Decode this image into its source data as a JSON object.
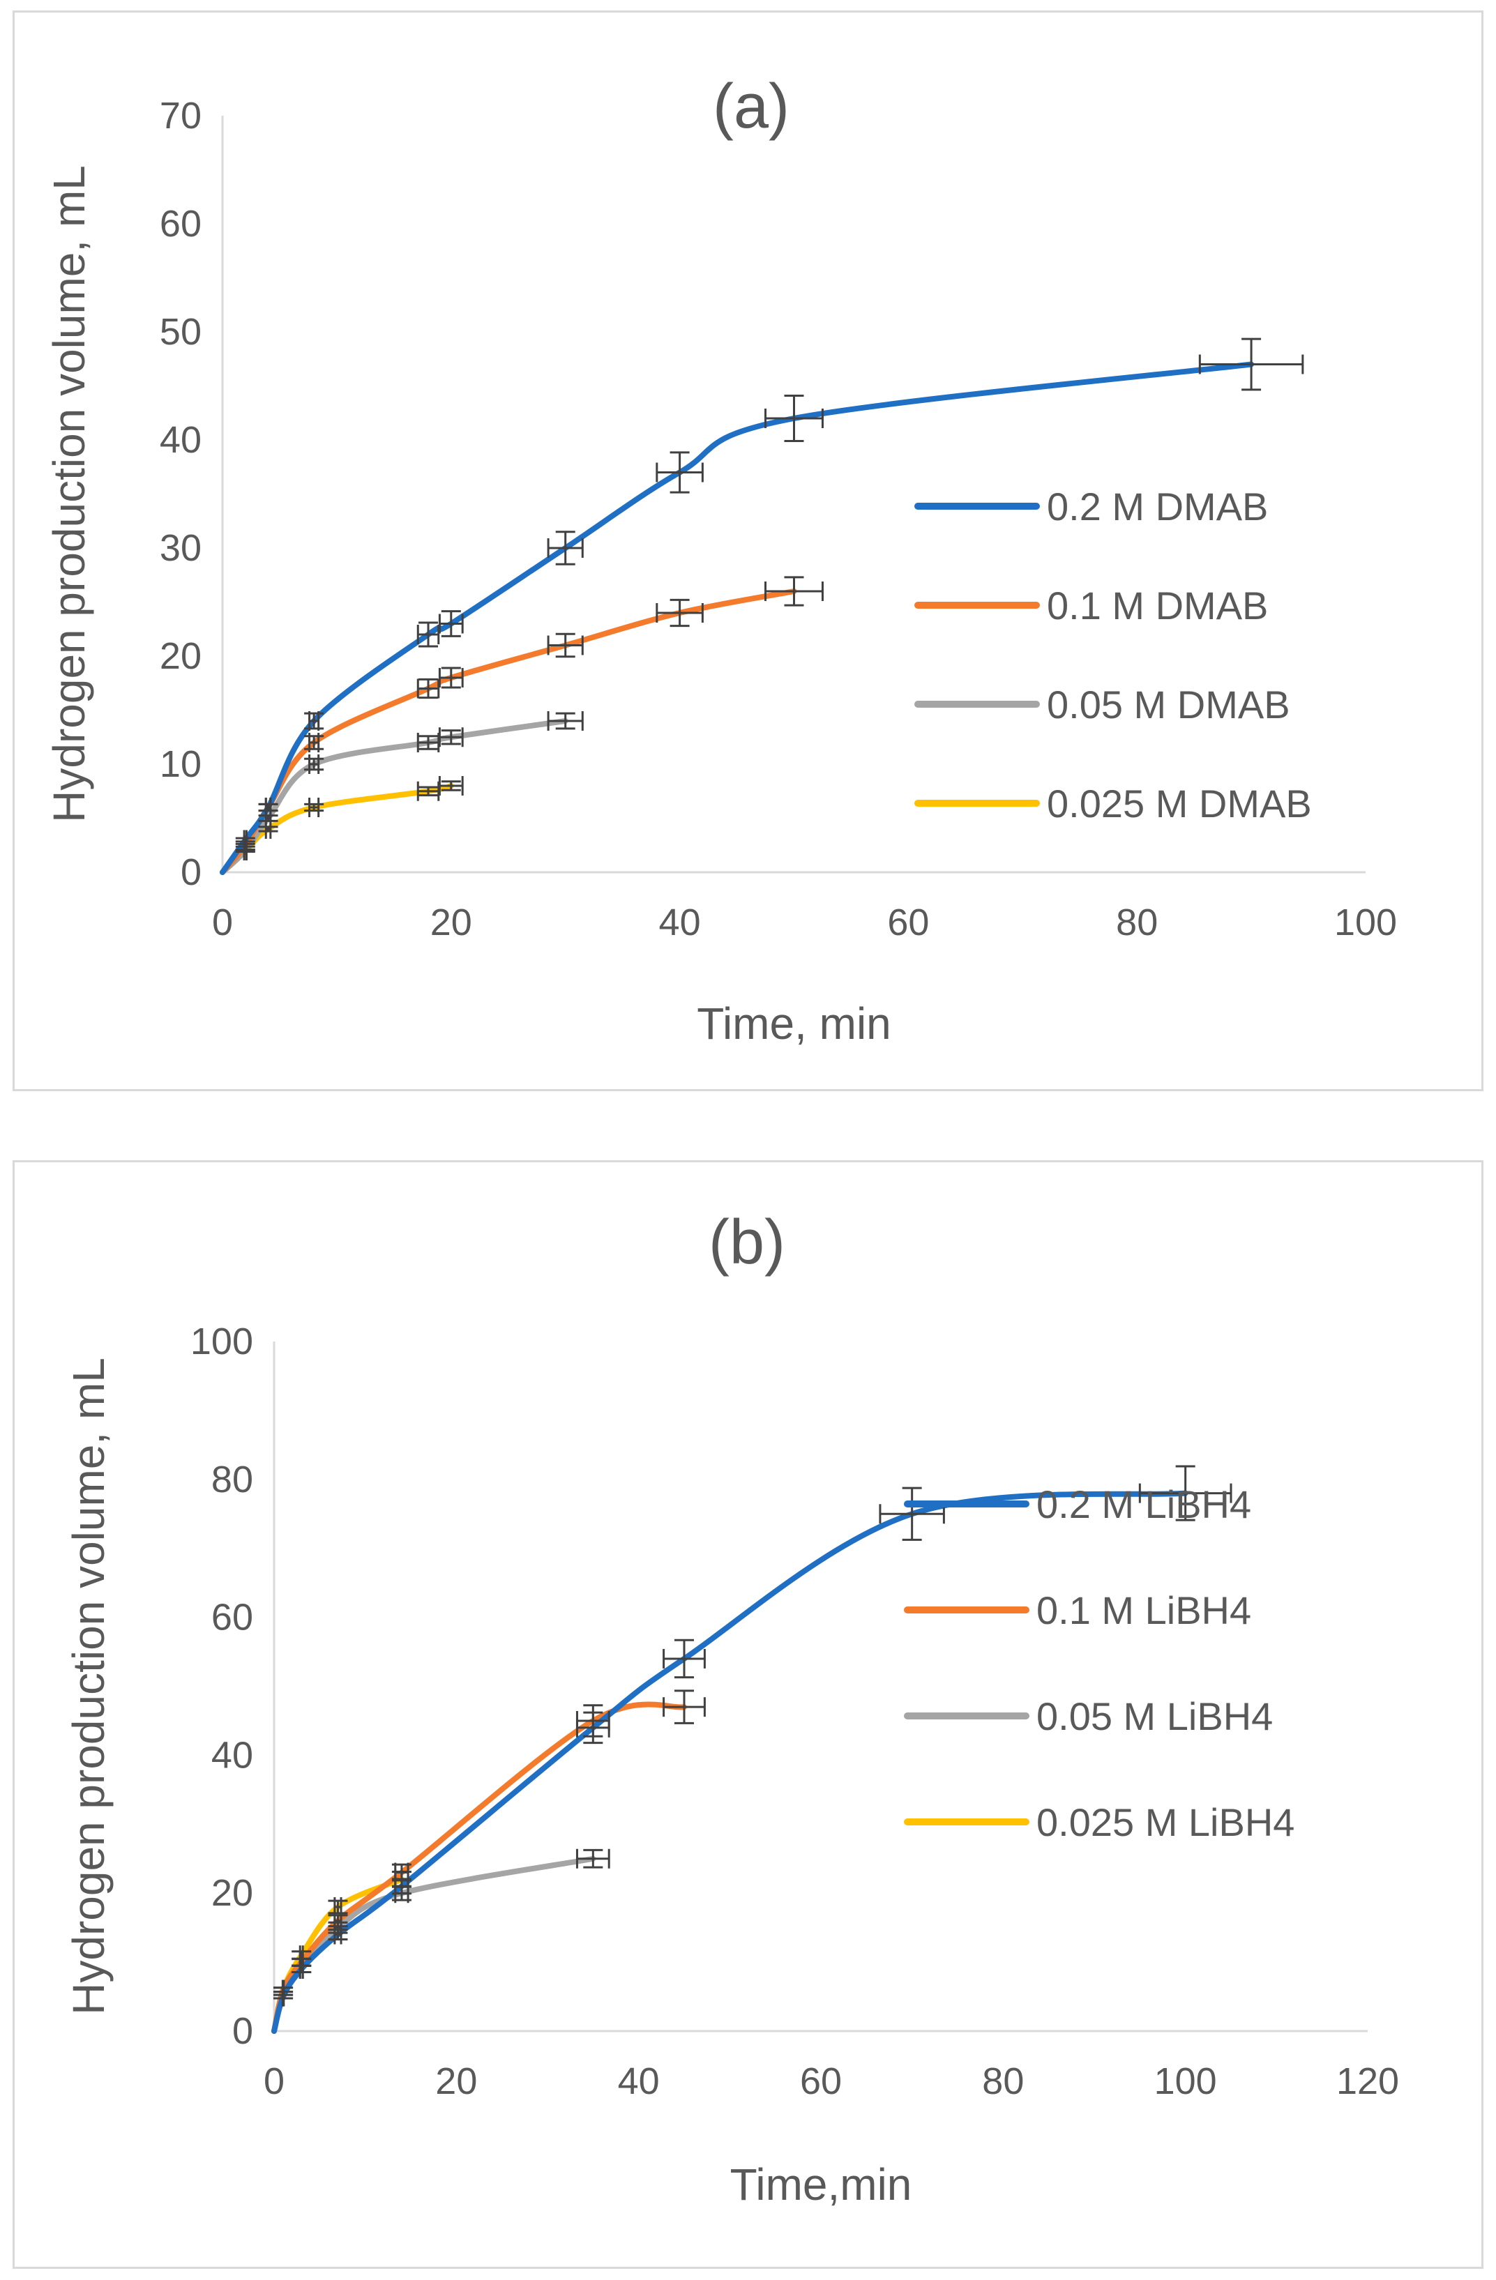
{
  "chart_data": [
    {
      "type": "line",
      "title": "(a)",
      "xlabel": "Time, min",
      "ylabel": "Hydrogen production volume, mL",
      "xlim": [
        0,
        100
      ],
      "ylim": [
        0,
        70
      ],
      "xticks": [
        0,
        20,
        40,
        60,
        80,
        100
      ],
      "yticks": [
        0,
        10,
        20,
        30,
        40,
        50,
        60,
        70
      ],
      "xtick_labels": [
        "0",
        "20",
        "40",
        "60",
        "80",
        "100"
      ],
      "ytick_labels": [
        "0",
        "10",
        "20",
        "30",
        "40",
        "50",
        "60",
        "70"
      ],
      "legend_position": "right",
      "series": [
        {
          "name": "0.2 M DMAB",
          "color": "#1f6fc4",
          "x": [
            0,
            2,
            4,
            8,
            18,
            20,
            30,
            40,
            50,
            90
          ],
          "y": [
            0,
            3,
            6,
            14,
            22,
            23,
            30,
            37,
            42,
            47
          ]
        },
        {
          "name": "0.1 M DMAB",
          "color": "#f47a2c",
          "x": [
            0,
            2,
            4,
            8,
            18,
            20,
            30,
            40,
            50
          ],
          "y": [
            0,
            2.5,
            6,
            12,
            17,
            18,
            21,
            24,
            26
          ]
        },
        {
          "name": "0.05 M DMAB",
          "color": "#a5a5a5",
          "x": [
            0,
            2,
            4,
            8,
            18,
            20,
            30
          ],
          "y": [
            0,
            2,
            5,
            10,
            12,
            12.5,
            14
          ]
        },
        {
          "name": "0.025 M DMAB",
          "color": "#ffc000",
          "x": [
            0,
            2,
            4,
            8,
            18,
            20
          ],
          "y": [
            0,
            2,
            4,
            6,
            7.5,
            8
          ]
        }
      ]
    },
    {
      "type": "line",
      "title": "(b)",
      "xlabel": "Time,min",
      "ylabel": "Hydrogen production volume, mL",
      "xlim": [
        0,
        120
      ],
      "ylim": [
        0,
        100
      ],
      "xticks": [
        0,
        20,
        40,
        60,
        80,
        100,
        120
      ],
      "yticks": [
        0,
        20,
        40,
        60,
        80,
        100
      ],
      "xtick_labels": [
        "0",
        "20",
        "40",
        "60",
        "80",
        "100",
        "120"
      ],
      "ytick_labels": [
        "0",
        "20",
        "40",
        "60",
        "80",
        "100"
      ],
      "legend_position": "right",
      "series": [
        {
          "name": "0.2 M LiBH4",
          "color": "#1f6fc4",
          "x": [
            0,
            1,
            3,
            7,
            14,
            35,
            45,
            70,
            100
          ],
          "y": [
            0,
            5,
            9,
            14,
            21,
            44,
            54,
            75,
            78
          ]
        },
        {
          "name": "0.1 M LiBH4",
          "color": "#f47a2c",
          "x": [
            0,
            1,
            3,
            7,
            14,
            35,
            45
          ],
          "y": [
            0,
            6,
            10,
            16,
            23,
            45,
            47
          ]
        },
        {
          "name": "0.05 M LiBH4",
          "color": "#a5a5a5",
          "x": [
            0,
            1,
            3,
            7,
            14,
            35
          ],
          "y": [
            0,
            5,
            9,
            15,
            20,
            25
          ]
        },
        {
          "name": "0.025 M LiBH4",
          "color": "#ffc000",
          "x": [
            0,
            1,
            3,
            7,
            14
          ],
          "y": [
            0,
            6,
            11,
            18,
            22
          ]
        }
      ]
    }
  ]
}
